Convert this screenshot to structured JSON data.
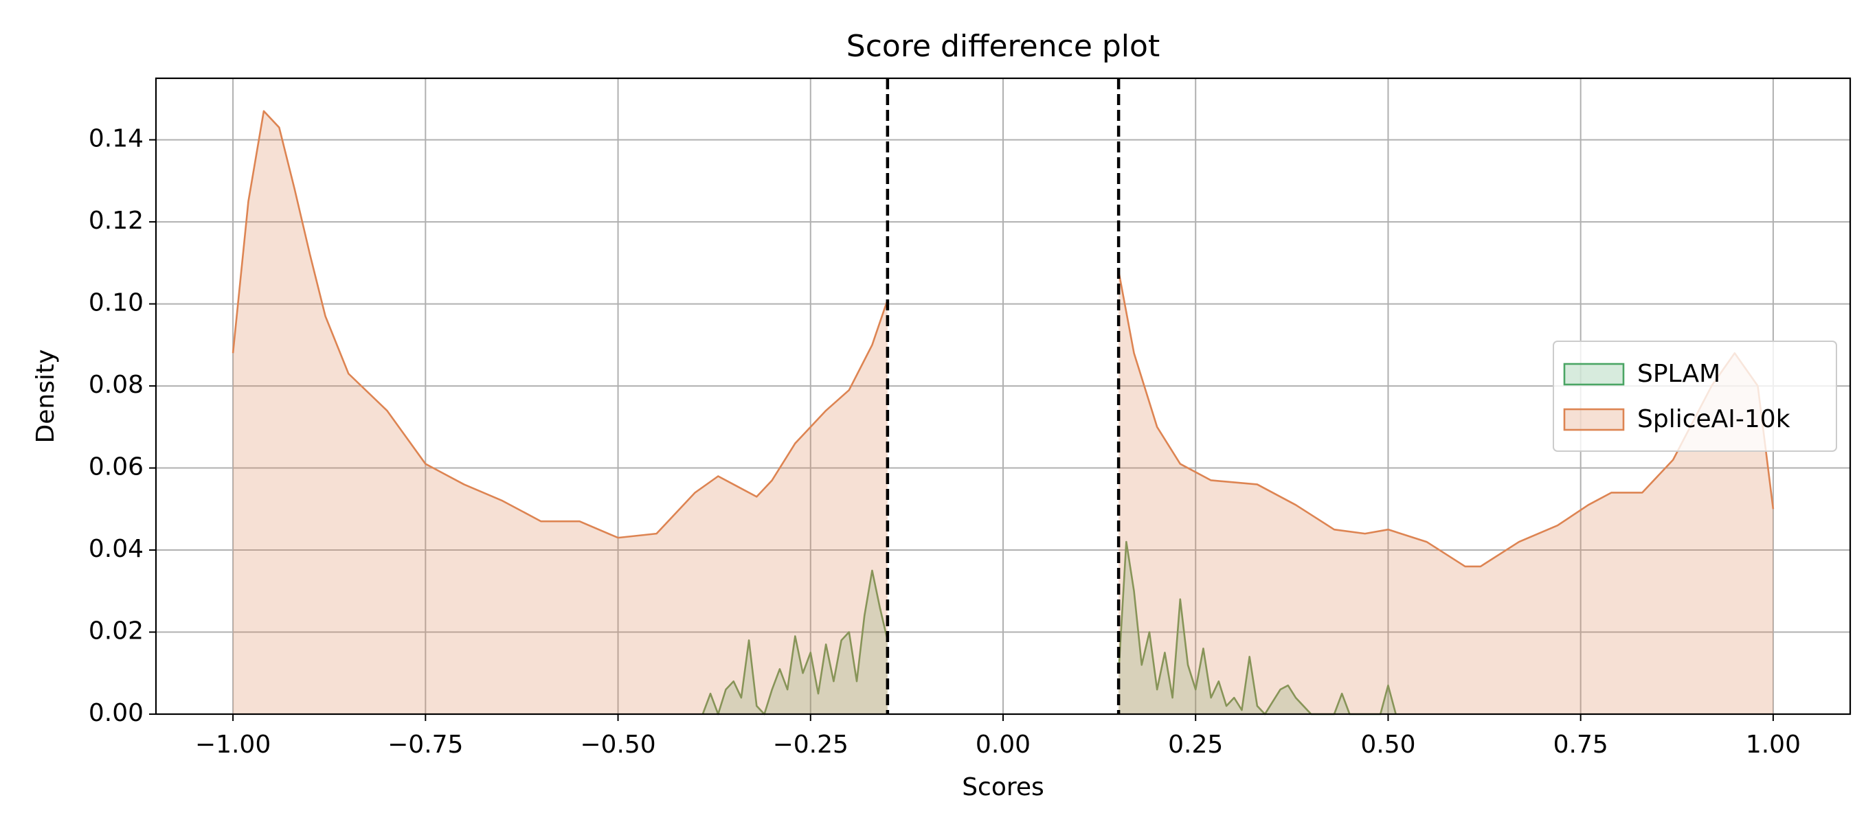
{
  "chart_data": {
    "type": "area",
    "title": "Score difference plot",
    "x_label": "Scores",
    "y_label": "Density",
    "xlim": [
      -1.1,
      1.1
    ],
    "ylim": [
      0,
      0.155
    ],
    "xticks": [
      {
        "value": -1,
        "label": "−1.00"
      },
      {
        "value": -0.75,
        "label": "−0.75"
      },
      {
        "value": -0.5,
        "label": "−0.50"
      },
      {
        "value": -0.25,
        "label": "−0.25"
      },
      {
        "value": 0,
        "label": "0.00"
      },
      {
        "value": 0.25,
        "label": "0.25"
      },
      {
        "value": 0.5,
        "label": "0.50"
      },
      {
        "value": 0.75,
        "label": "0.75"
      },
      {
        "value": 1,
        "label": "1.00"
      }
    ],
    "yticks": [
      {
        "value": 0,
        "label": "0.00"
      },
      {
        "value": 0.02,
        "label": "0.02"
      },
      {
        "value": 0.04,
        "label": "0.04"
      },
      {
        "value": 0.06,
        "label": "0.06"
      },
      {
        "value": 0.08,
        "label": "0.08"
      },
      {
        "value": 0.1,
        "label": "0.10"
      },
      {
        "value": 0.12,
        "label": "0.12"
      },
      {
        "value": 0.14,
        "label": "0.14"
      }
    ],
    "grid": true,
    "legend": "center right",
    "vlines": [
      -0.15,
      0.15
    ],
    "series": [
      {
        "name": "SPLAM",
        "color": "#4aa564",
        "fill": "rgba(74,165,100,0.22)",
        "line": "#6b9a5a",
        "x": [
          -0.39,
          -0.38,
          -0.37,
          -0.36,
          -0.35,
          -0.34,
          -0.33,
          -0.32,
          -0.31,
          -0.3,
          -0.29,
          -0.28,
          -0.27,
          -0.26,
          -0.25,
          -0.24,
          -0.23,
          -0.22,
          -0.21,
          -0.2,
          -0.19,
          -0.18,
          -0.17,
          -0.16,
          -0.15,
          null,
          0.15,
          0.16,
          0.17,
          0.18,
          0.19,
          0.2,
          0.21,
          0.22,
          0.23,
          0.24,
          0.25,
          0.26,
          0.27,
          0.28,
          0.29,
          0.3,
          0.31,
          0.32,
          0.33,
          0.34,
          0.36,
          0.37,
          0.38,
          0.39,
          0.4,
          0.43,
          0.44,
          0.45,
          0.49,
          0.5,
          0.51
        ],
        "values": [
          0,
          0.005,
          0,
          0.006,
          0.008,
          0.004,
          0.018,
          0.002,
          0,
          0.006,
          0.011,
          0.006,
          0.019,
          0.01,
          0.015,
          0.005,
          0.017,
          0.008,
          0.018,
          0.02,
          0.008,
          0.024,
          0.035,
          0.026,
          0.018,
          null,
          0.01,
          0.042,
          0.03,
          0.012,
          0.02,
          0.006,
          0.015,
          0.004,
          0.028,
          0.012,
          0.006,
          0.016,
          0.004,
          0.008,
          0.002,
          0.004,
          0.001,
          0.014,
          0.002,
          0,
          0.006,
          0.007,
          0.004,
          0.002,
          0,
          0,
          0.005,
          0,
          0,
          0.007,
          0
        ]
      },
      {
        "name": "SpliceAI-10k",
        "color": "#dd8452",
        "fill": "rgba(221,132,82,0.25)",
        "line": "#dd8452",
        "x": [
          -1,
          -0.98,
          -0.96,
          -0.94,
          -0.92,
          -0.9,
          -0.88,
          -0.85,
          -0.8,
          -0.75,
          -0.7,
          -0.65,
          -0.6,
          -0.55,
          -0.5,
          -0.45,
          -0.4,
          -0.37,
          -0.35,
          -0.32,
          -0.3,
          -0.27,
          -0.23,
          -0.2,
          -0.17,
          -0.15,
          null,
          0.15,
          0.17,
          0.2,
          0.23,
          0.27,
          0.33,
          0.38,
          0.43,
          0.47,
          0.5,
          0.55,
          0.6,
          0.62,
          0.67,
          0.72,
          0.76,
          0.79,
          0.83,
          0.87,
          0.92,
          0.95,
          0.98,
          1
        ],
        "values": [
          0.088,
          0.125,
          0.147,
          0.143,
          0.128,
          0.112,
          0.097,
          0.083,
          0.074,
          0.061,
          0.056,
          0.052,
          0.047,
          0.047,
          0.043,
          0.044,
          0.054,
          0.058,
          0.056,
          0.053,
          0.057,
          0.066,
          0.074,
          0.079,
          0.09,
          0.101,
          null,
          0.108,
          0.088,
          0.07,
          0.061,
          0.057,
          0.056,
          0.051,
          0.045,
          0.044,
          0.045,
          0.042,
          0.036,
          0.036,
          0.042,
          0.046,
          0.051,
          0.054,
          0.054,
          0.062,
          0.08,
          0.088,
          0.08,
          0.05
        ]
      }
    ]
  }
}
